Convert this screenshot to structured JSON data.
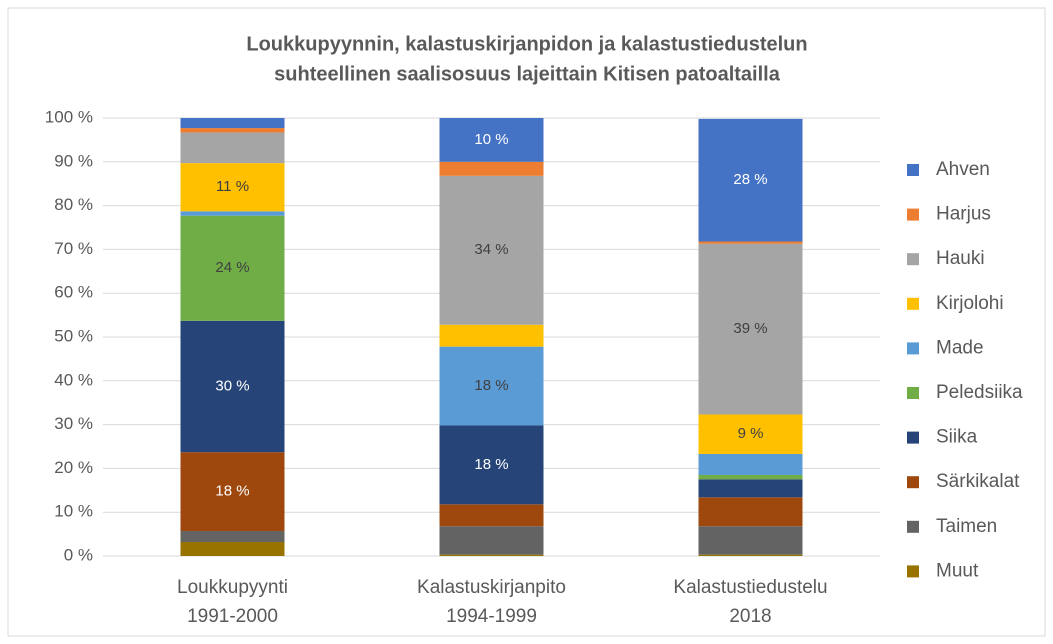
{
  "chart_data": {
    "type": "stacked_bar",
    "title": [
      "Loukkupyynnin, kalastuskirjanpidon ja kalastustiedustelun",
      "suhteellinen saalisosuus lajeittain Kitisen patoaltailla"
    ],
    "categories": [
      [
        "Loukkupyynti",
        "1991-2000"
      ],
      [
        "Kalastuskirjanpito",
        "1994-1999"
      ],
      [
        "Kalastustiedustelu",
        "2018"
      ]
    ],
    "ylim": [
      0,
      100
    ],
    "yticks": [
      {
        "value": 0,
        "label": "0 %"
      },
      {
        "value": 10,
        "label": "10 %"
      },
      {
        "value": 20,
        "label": "20 %"
      },
      {
        "value": 30,
        "label": "30 %"
      },
      {
        "value": 40,
        "label": "40 %"
      },
      {
        "value": 50,
        "label": "50 %"
      },
      {
        "value": 60,
        "label": "60 %"
      },
      {
        "value": 70,
        "label": "70 %"
      },
      {
        "value": 80,
        "label": "80 %"
      },
      {
        "value": 90,
        "label": "90 %"
      },
      {
        "value": 100,
        "label": "100 %"
      }
    ],
    "grid": true,
    "legend": "right",
    "series": [
      {
        "name": "Muut",
        "color": "#997300",
        "values": [
          3.2,
          0.3,
          0.3
        ],
        "value_labels": [
          null,
          null,
          null
        ]
      },
      {
        "name": "Taimen",
        "color": "#636363",
        "values": [
          2.5,
          6.5,
          6.5
        ],
        "value_labels": [
          null,
          null,
          null
        ]
      },
      {
        "name": "Särkikalat",
        "color": "#9e480e",
        "values": [
          18,
          5,
          6.6
        ],
        "value_labels": [
          "18 %",
          null,
          null
        ]
      },
      {
        "name": "Siika",
        "color": "#264478",
        "values": [
          30,
          18,
          4.1
        ],
        "value_labels": [
          "30 %",
          "18 %",
          null
        ]
      },
      {
        "name": "Peledsiika",
        "color": "#70ad47",
        "values": [
          24,
          0,
          1
        ],
        "value_labels": [
          "24 %",
          null,
          null
        ]
      },
      {
        "name": "Made",
        "color": "#5b9bd5",
        "values": [
          1,
          18,
          4.8
        ],
        "value_labels": [
          null,
          "18 %",
          null
        ]
      },
      {
        "name": "Kirjolohi",
        "color": "#ffc000",
        "values": [
          11,
          5,
          9
        ],
        "value_labels": [
          "11 %",
          null,
          "9 %"
        ]
      },
      {
        "name": "Hauki",
        "color": "#a5a5a5",
        "values": [
          7,
          34,
          39
        ],
        "value_labels": [
          null,
          "34 %",
          "39 %"
        ]
      },
      {
        "name": "Harjus",
        "color": "#ed7d31",
        "values": [
          1,
          3.2,
          0.5
        ],
        "value_labels": [
          null,
          null,
          null
        ]
      },
      {
        "name": "Ahven",
        "color": "#4472c4",
        "values": [
          2.3,
          10,
          28
        ],
        "value_labels": [
          null,
          "10 %",
          "28 %"
        ]
      }
    ]
  }
}
